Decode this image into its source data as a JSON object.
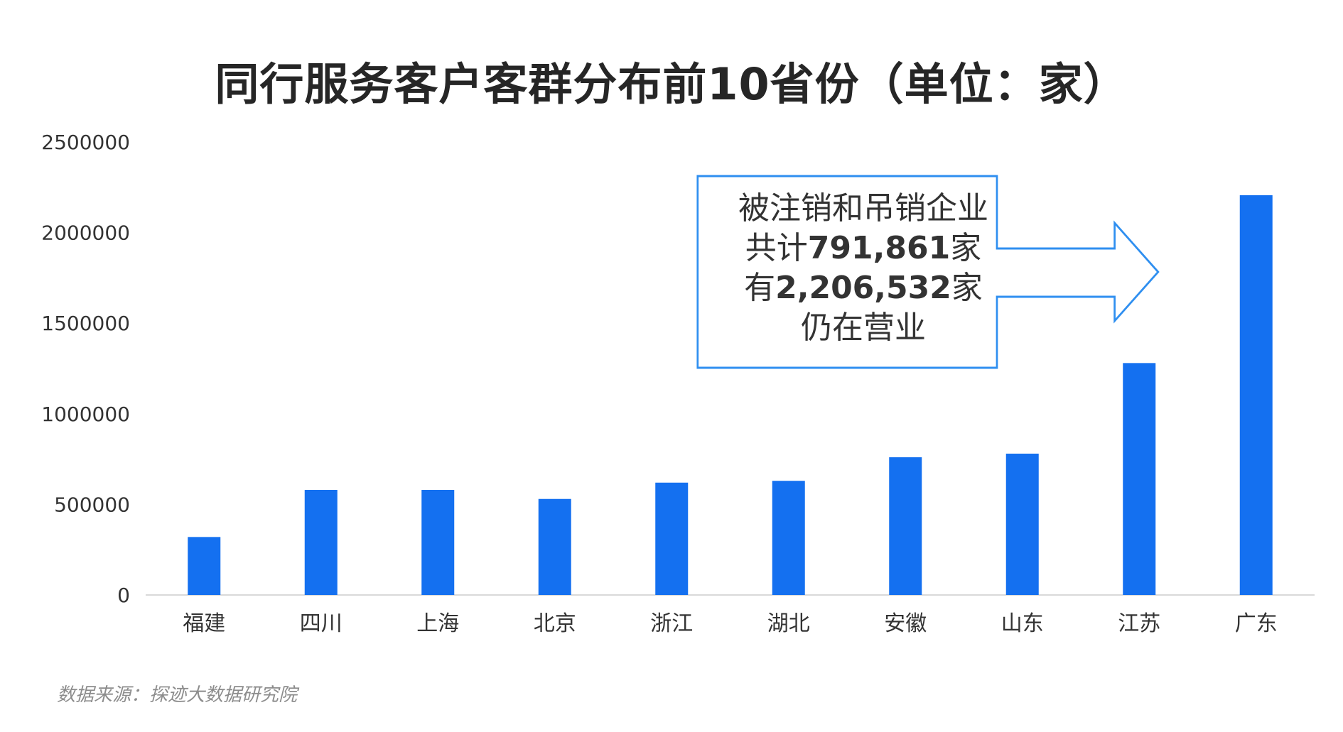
{
  "title": "同行服务客户客群分布前10省份（单位：家）",
  "source": "数据来源：探迹大数据研究院",
  "annotation": {
    "line1": "被注销和吊销企业",
    "line2_prefix": "共计",
    "line2_number": "791,861",
    "line2_suffix": "家",
    "line3_prefix": "有",
    "line3_number": "2,206,532",
    "line3_suffix": "家",
    "line4": "仍在营业"
  },
  "colors": {
    "bar": "#1470f0",
    "callout_border": "#2f8ff0",
    "axis": "#d9d9d9",
    "text": "#333333"
  },
  "chart_data": {
    "type": "bar",
    "title": "同行服务客户客群分布前10省份（单位：家）",
    "xlabel": "",
    "ylabel": "",
    "categories": [
      "福建",
      "四川",
      "上海",
      "北京",
      "浙江",
      "湖北",
      "安徽",
      "山东",
      "江苏",
      "广东"
    ],
    "values": [
      320000,
      580000,
      580000,
      530000,
      620000,
      630000,
      760000,
      780000,
      1280000,
      2206532
    ],
    "ylim": [
      0,
      2500000
    ],
    "yticks": [
      "0",
      "500000",
      "1000000",
      "1500000",
      "2000000",
      "2500000"
    ],
    "grid": false,
    "legend": "none"
  }
}
